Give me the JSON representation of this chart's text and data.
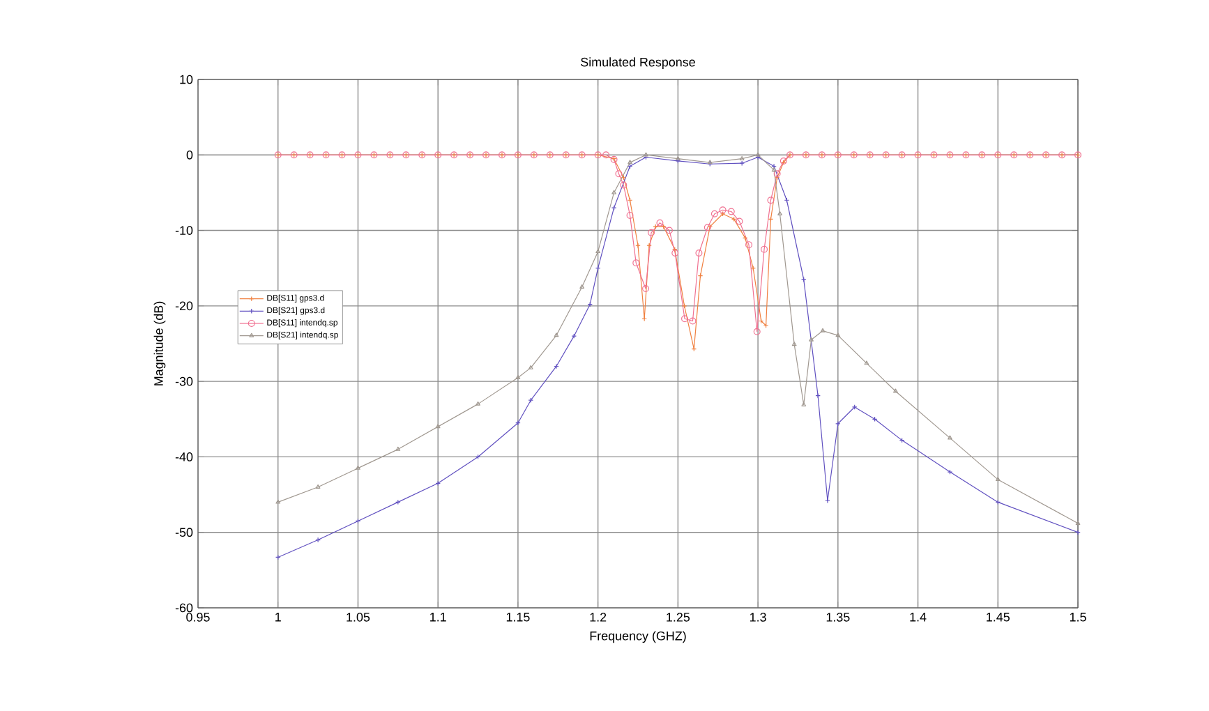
{
  "chart_data": {
    "type": "line",
    "title": "Simulated Response",
    "xlabel": "Frequency (GHZ)",
    "ylabel": "Magnitude (dB)",
    "xlim": [
      0.95,
      1.5
    ],
    "ylim": [
      -60,
      10
    ],
    "xticks": [
      0.95,
      1,
      1.05,
      1.1,
      1.15,
      1.2,
      1.25,
      1.3,
      1.35,
      1.4,
      1.45,
      1.5
    ],
    "yticks": [
      -60,
      -50,
      -40,
      -30,
      -20,
      -10,
      0,
      10
    ],
    "grid": true,
    "legend": "left",
    "series": [
      {
        "name": "DB[S11]  gps3.d",
        "color": "#f08040",
        "marker": "cross",
        "x": [
          1.0,
          1.01,
          1.02,
          1.03,
          1.04,
          1.05,
          1.06,
          1.07,
          1.08,
          1.09,
          1.1,
          1.11,
          1.12,
          1.13,
          1.14,
          1.15,
          1.16,
          1.17,
          1.18,
          1.19,
          1.2,
          1.21,
          1.216,
          1.22,
          1.225,
          1.229,
          1.232,
          1.236,
          1.241,
          1.248,
          1.254,
          1.26,
          1.264,
          1.27,
          1.278,
          1.285,
          1.292,
          1.297,
          1.302,
          1.305,
          1.308,
          1.312,
          1.316,
          1.32,
          1.33,
          1.34,
          1.35,
          1.36,
          1.37,
          1.38,
          1.39,
          1.4,
          1.41,
          1.42,
          1.43,
          1.44,
          1.45,
          1.46,
          1.47,
          1.48,
          1.49,
          1.5
        ],
        "values": [
          0,
          0,
          0,
          0,
          0,
          0,
          0,
          0,
          0,
          0,
          0,
          0,
          0,
          0,
          0,
          0,
          0,
          0,
          0,
          0,
          0,
          -0.5,
          -3,
          -6,
          -12,
          -21.7,
          -12,
          -9.5,
          -9.5,
          -12.5,
          -20,
          -25.7,
          -16,
          -9.5,
          -7.8,
          -8.5,
          -11,
          -15,
          -22,
          -22.6,
          -8.5,
          -3,
          -1,
          0,
          0,
          0,
          0,
          0,
          0,
          0,
          0,
          0,
          0,
          0,
          0,
          0,
          0,
          0,
          0,
          0,
          0,
          0
        ]
      },
      {
        "name": "DB[S21]  gps3.d",
        "color": "#6050c0",
        "marker": "cross",
        "x": [
          1.0,
          1.025,
          1.05,
          1.075,
          1.1,
          1.125,
          1.15,
          1.158,
          1.174,
          1.185,
          1.195,
          1.2,
          1.21,
          1.22,
          1.23,
          1.25,
          1.27,
          1.29,
          1.3,
          1.31,
          1.318,
          1.3286,
          1.3375,
          1.3435,
          1.35,
          1.3604,
          1.373,
          1.39,
          1.42,
          1.45,
          1.5
        ],
        "values": [
          -53.3,
          -51,
          -48.5,
          -46,
          -43.5,
          -40,
          -35.5,
          -32.5,
          -28,
          -24,
          -19.8,
          -15,
          -7,
          -1.5,
          -0.3,
          -0.8,
          -1.2,
          -1.1,
          -0.3,
          -1.5,
          -6,
          -16.5,
          -31.9,
          -45.8,
          -35.6,
          -33.4,
          -35,
          -37.8,
          -42,
          -46,
          -50
        ]
      },
      {
        "name": "DB[S11]  intendq.sp",
        "color": "#f07090",
        "marker": "circle",
        "x": [
          1.0,
          1.01,
          1.02,
          1.03,
          1.04,
          1.05,
          1.06,
          1.07,
          1.08,
          1.09,
          1.1,
          1.11,
          1.12,
          1.13,
          1.14,
          1.15,
          1.16,
          1.17,
          1.18,
          1.19,
          1.2,
          1.205,
          1.21,
          1.213,
          1.216,
          1.22,
          1.2238,
          1.2298,
          1.2333,
          1.2387,
          1.2446,
          1.2482,
          1.2542,
          1.2592,
          1.2631,
          1.2685,
          1.2729,
          1.278,
          1.2833,
          1.2884,
          1.2943,
          1.2994,
          1.3039,
          1.308,
          1.312,
          1.316,
          1.32,
          1.33,
          1.34,
          1.35,
          1.36,
          1.37,
          1.38,
          1.39,
          1.4,
          1.41,
          1.42,
          1.43,
          1.44,
          1.45,
          1.46,
          1.47,
          1.48,
          1.49,
          1.5
        ],
        "values": [
          0,
          0,
          0,
          0,
          0,
          0,
          0,
          0,
          0,
          0,
          0,
          0,
          0,
          0,
          0,
          0,
          0,
          0,
          0,
          0,
          0,
          0,
          -0.6,
          -2.5,
          -4,
          -8,
          -14.3,
          -17.7,
          -10.3,
          -9,
          -10,
          -13,
          -21.7,
          -22,
          -13,
          -9.6,
          -7.8,
          -7.3,
          -7.5,
          -8.8,
          -11.9,
          -23.4,
          -12.5,
          -6,
          -2.5,
          -0.8,
          0,
          0,
          0,
          0,
          0,
          0,
          0,
          0,
          0,
          0,
          0,
          0,
          0,
          0,
          0,
          0,
          0,
          0,
          0
        ]
      },
      {
        "name": "DB[S21]  intendq.sp",
        "color": "#a09890",
        "marker": "triangle",
        "x": [
          1.0,
          1.025,
          1.05,
          1.075,
          1.1,
          1.125,
          1.15,
          1.158,
          1.174,
          1.19,
          1.2,
          1.21,
          1.22,
          1.23,
          1.25,
          1.27,
          1.29,
          1.3,
          1.31,
          1.3137,
          1.3227,
          1.3286,
          1.3333,
          1.3405,
          1.35,
          1.3679,
          1.386,
          1.42,
          1.45,
          1.5
        ],
        "values": [
          -46,
          -44,
          -41.5,
          -39,
          -36,
          -33,
          -29.5,
          -28.2,
          -23.9,
          -17.5,
          -12.8,
          -5,
          -1,
          0,
          -0.5,
          -1,
          -0.5,
          0,
          -2,
          -7.8,
          -25.1,
          -33.1,
          -24.5,
          -23.3,
          -23.9,
          -27.6,
          -31.3,
          -37.5,
          -43,
          -48.8
        ]
      }
    ]
  }
}
